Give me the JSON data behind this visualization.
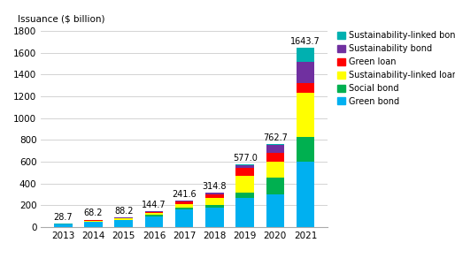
{
  "years": [
    "2013",
    "2014",
    "2015",
    "2016",
    "2017",
    "2018",
    "2019",
    "2020",
    "2021"
  ],
  "totals": [
    28.7,
    68.2,
    88.2,
    144.7,
    241.6,
    314.8,
    577.0,
    762.7,
    1643.7
  ],
  "segments": {
    "Green bond": [
      22.0,
      45.0,
      62.0,
      100.0,
      160.0,
      175.0,
      270.0,
      300.0,
      600.0
    ],
    "Social bond": [
      1.0,
      5.0,
      6.0,
      12.0,
      18.0,
      25.0,
      50.0,
      150.0,
      230.0
    ],
    "Sustainability-linked loan": [
      2.0,
      8.0,
      9.0,
      14.0,
      35.0,
      65.0,
      150.0,
      150.0,
      400.0
    ],
    "Green loan": [
      2.0,
      5.0,
      6.0,
      10.0,
      18.0,
      35.0,
      70.0,
      80.0,
      90.0
    ],
    "Sustainability bond": [
      1.0,
      4.0,
      4.5,
      7.0,
      8.0,
      12.0,
      30.0,
      70.0,
      200.0
    ],
    "Sustainability-linked bond": [
      0.7,
      1.2,
      0.7,
      1.7,
      2.6,
      2.8,
      7.0,
      12.7,
      123.7
    ]
  },
  "colors": {
    "Green bond": "#00b0f0",
    "Social bond": "#00b050",
    "Sustainability-linked loan": "#ffff00",
    "Green loan": "#ff0000",
    "Sustainability bond": "#7030a0",
    "Sustainability-linked bond": "#00b0b0"
  },
  "ylabel": "Issuance ($ billion)",
  "ylim": [
    0,
    1800
  ],
  "yticks": [
    0,
    200,
    400,
    600,
    800,
    1000,
    1200,
    1400,
    1600,
    1800
  ],
  "label_fontsize": 7.5,
  "legend_fontsize": 7,
  "bar_width": 0.6,
  "background_color": "#ffffff",
  "grid_color": "#cccccc"
}
